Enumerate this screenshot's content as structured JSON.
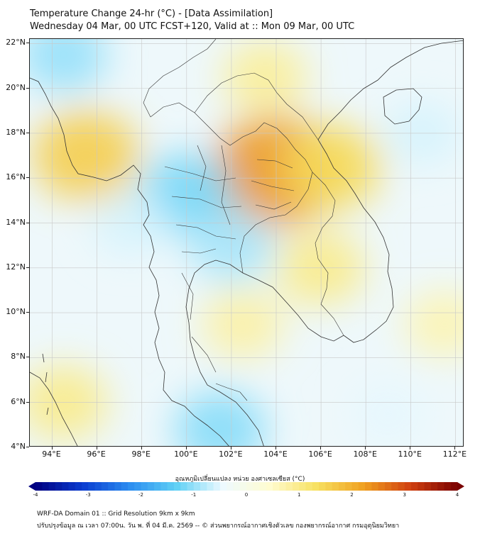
{
  "title_line1": "Temperature Change 24-hr (°C) - [Data Assimilation]",
  "title_line2": "Wednesday 04 Mar, 00 UTC FCST+120, Valid at :: Mon 09 Mar, 00 UTC",
  "lat_labels": [
    "22°N",
    "20°N",
    "18°N",
    "16°N",
    "14°N",
    "12°N",
    "10°N",
    "8°N",
    "6°N",
    "4°N"
  ],
  "lon_labels": [
    "94°E",
    "96°E",
    "98°E",
    "100°E",
    "102°E",
    "104°E",
    "106°E",
    "108°E",
    "110°E",
    "112°E"
  ],
  "colorbar": {
    "label": "อุณหภูมิเปลี่ยนแปลง หน่วย องศาเซลเซียส (°C)",
    "ticks": [
      "-4",
      "-3",
      "-2",
      "-1",
      "0",
      "1",
      "2",
      "3",
      "4"
    ],
    "range": [
      -4,
      4
    ],
    "colors": [
      "#000080",
      "#0a3cd0",
      "#2b8cf0",
      "#5fd0f5",
      "#eefaff",
      "#fffcd0",
      "#f7e060",
      "#f0a020",
      "#d04010",
      "#7a0000"
    ]
  },
  "footer_line1": "WRF-DA Domain 01 :: Grid Resolution 9km x 9km",
  "footer_line2": "ปรับปรุงข้อมูล ณ เวลา 07:00น. วัน พ. ที่ 04 มี.ค. 2569 -- © ส่วนพยากรณ์อากาศเชิงตัวเลข กองพยากรณ์อากาศ กรมอุตุนิยมวิทยา",
  "map_extent": {
    "lon": [
      93,
      112.4
    ],
    "lat": [
      4,
      22.2
    ]
  },
  "field_blobs": [
    {
      "name": "warm-northeast-thailand",
      "lon": 104,
      "lat": 16.3,
      "value": 2.3
    },
    {
      "name": "warm-laos-vietnam",
      "lon": 106.5,
      "lat": 16.5,
      "value": 1.4
    },
    {
      "name": "warm-myanmar-west",
      "lon": 95.5,
      "lat": 17,
      "value": 1.6
    },
    {
      "name": "warm-north-laos",
      "lon": 103.5,
      "lat": 20.5,
      "value": 0.9
    },
    {
      "name": "warm-cambodia",
      "lon": 106,
      "lat": 12,
      "value": 1.0
    },
    {
      "name": "warm-gulf-thailand",
      "lon": 102.5,
      "lat": 9.5,
      "value": 0.8
    },
    {
      "name": "warm-andaman-south",
      "lon": 94.5,
      "lat": 6,
      "value": 1.0
    },
    {
      "name": "warm-scs-east",
      "lon": 111.5,
      "lat": 9.5,
      "value": 0.7
    },
    {
      "name": "cool-central-thailand",
      "lon": 100,
      "lat": 15.3,
      "value": -1.2
    },
    {
      "name": "cool-bangkok-east",
      "lon": 102,
      "lat": 13,
      "value": -0.9
    },
    {
      "name": "cool-malaysia",
      "lon": 101.5,
      "lat": 4.8,
      "value": -1.1
    },
    {
      "name": "cool-bay-of-bengal",
      "lon": 94.5,
      "lat": 21.5,
      "value": -1.0
    },
    {
      "name": "cool-andaman-sea",
      "lon": 97.5,
      "lat": 14,
      "value": -0.6
    },
    {
      "name": "cool-scs-northeast",
      "lon": 110.5,
      "lat": 18,
      "value": -0.6
    },
    {
      "name": "cool-scs-south",
      "lon": 109,
      "lat": 5.5,
      "value": -0.5
    }
  ]
}
